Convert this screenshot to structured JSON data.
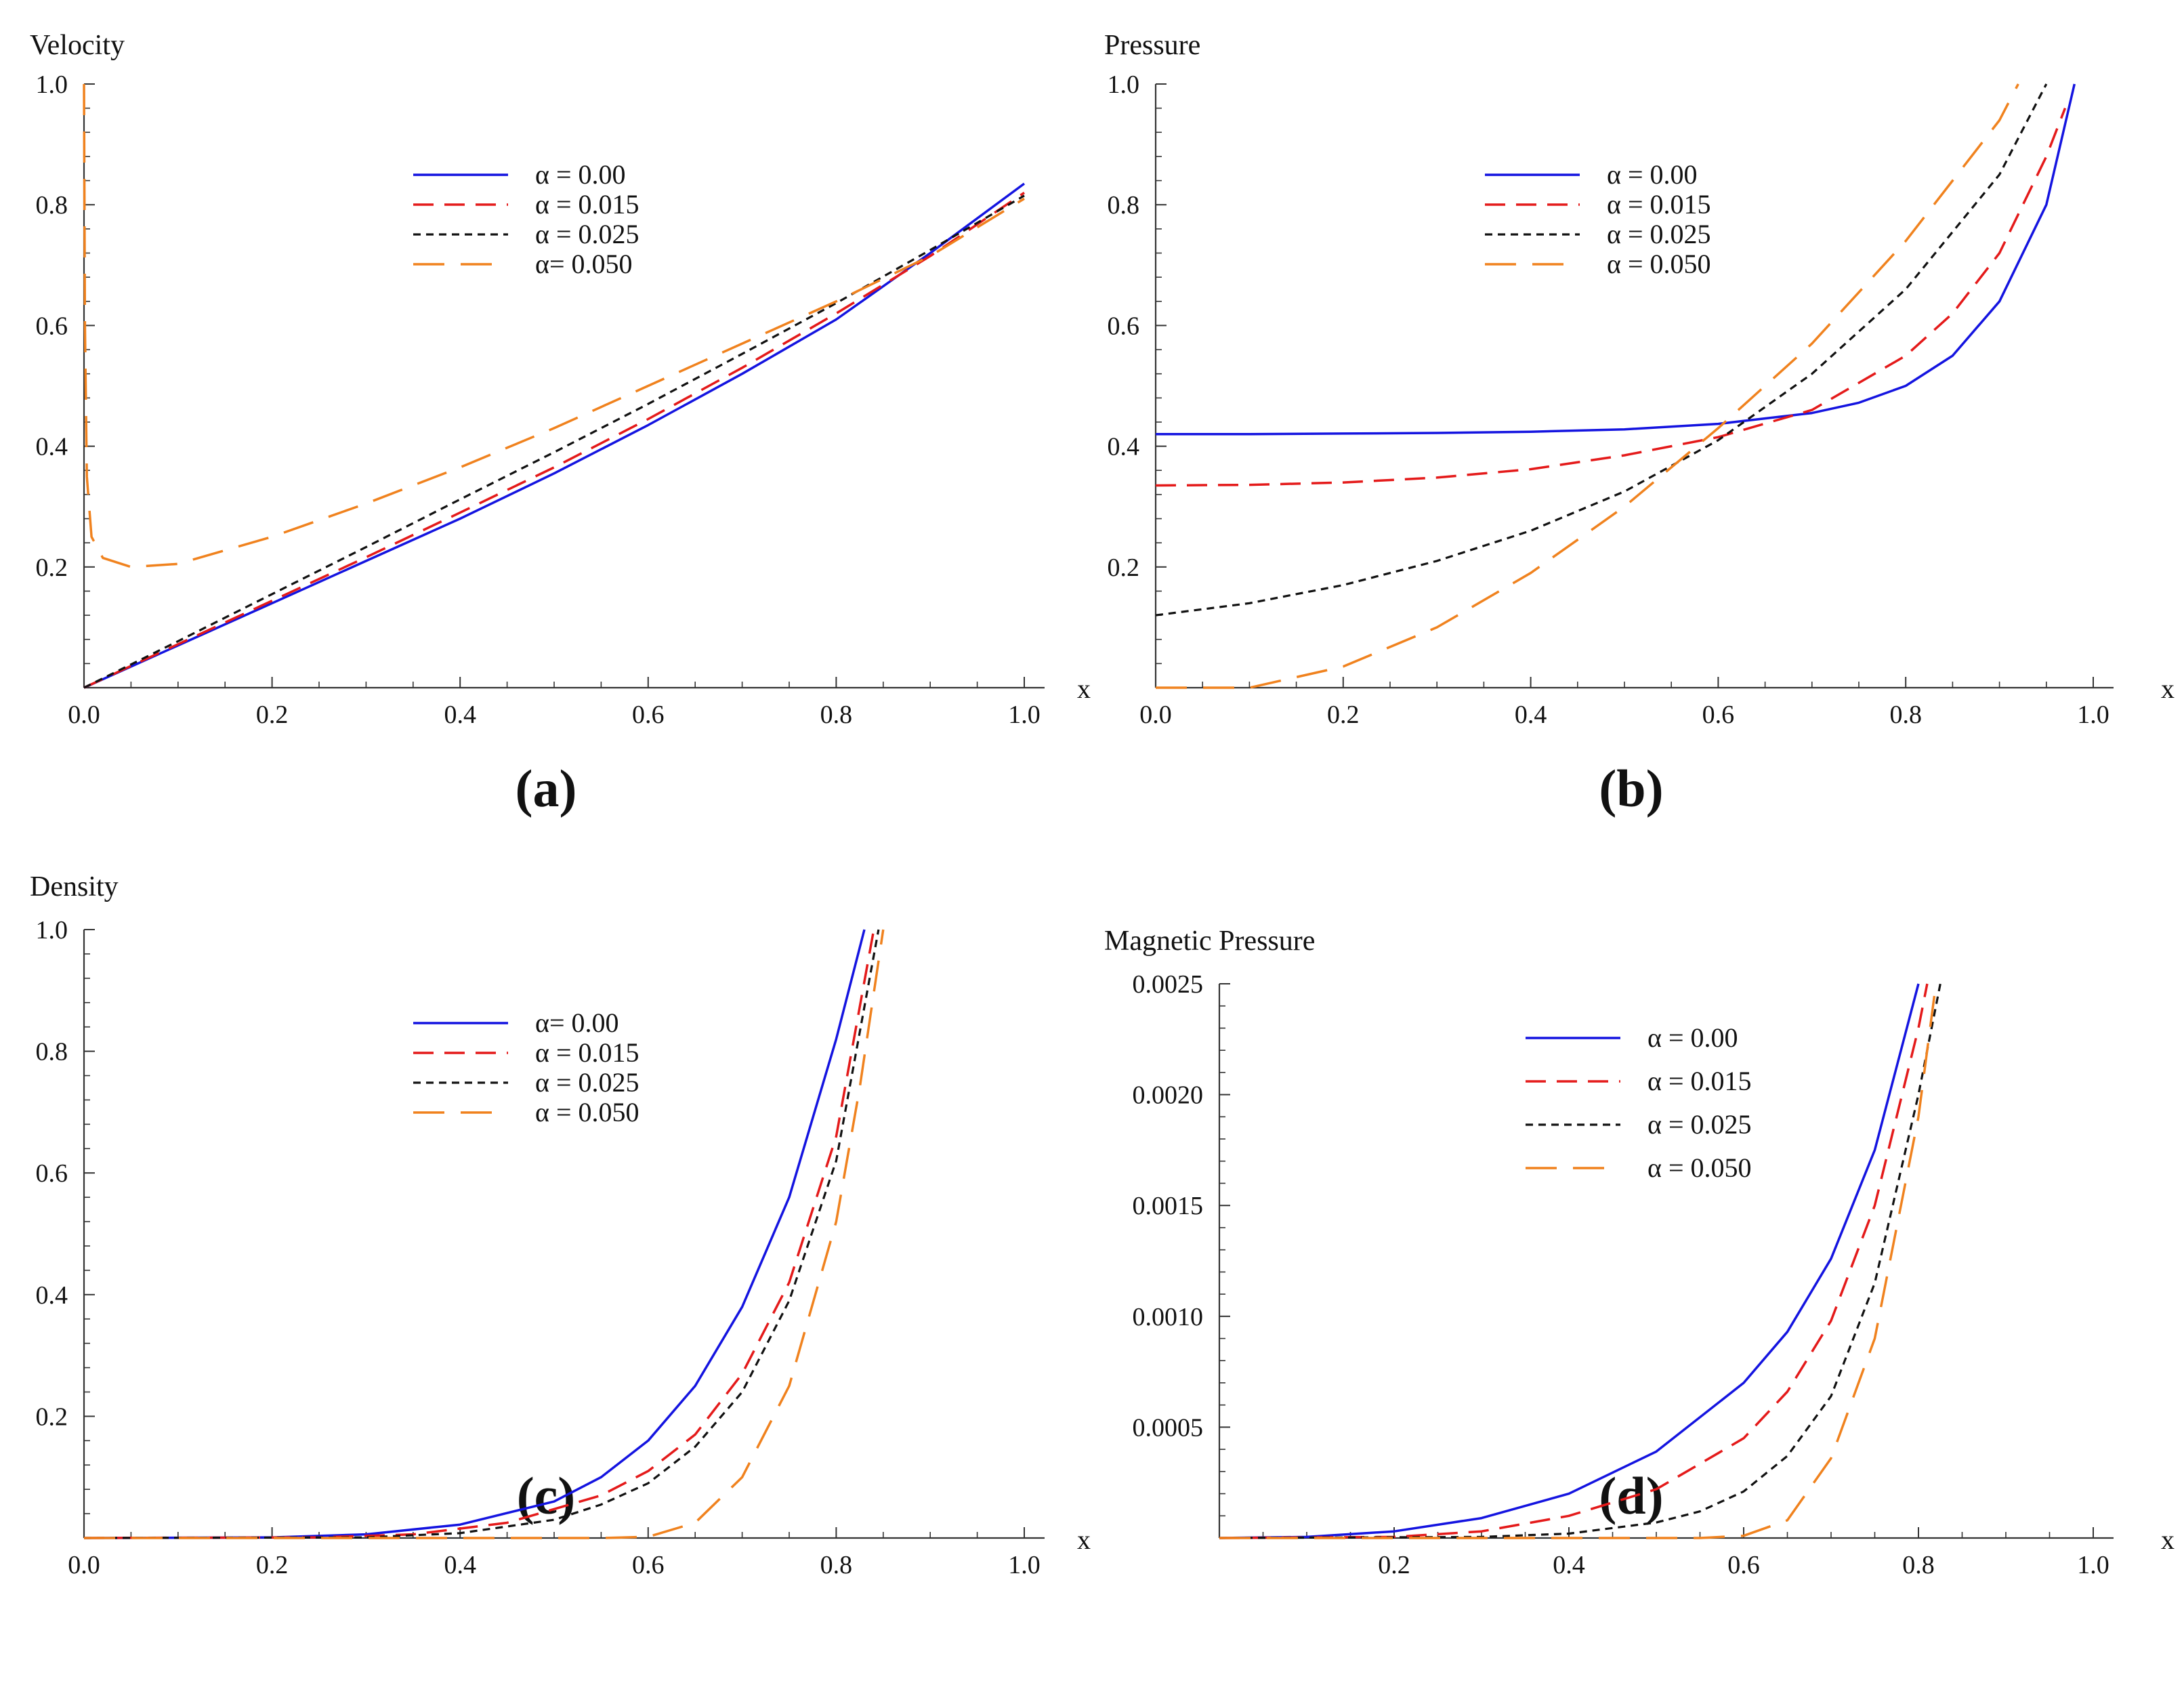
{
  "colors": {
    "blue": "#1414e0",
    "red": "#e41a1a",
    "black": "#111111",
    "orange": "#f0821e",
    "axis": "#333333"
  },
  "chart_data": [
    {
      "panel": "(a)",
      "type": "line",
      "title": "",
      "xlabel": "x",
      "ylabel": "Velocity",
      "xlim": [
        0,
        1
      ],
      "ylim": [
        0,
        1
      ],
      "xticks": [
        "0.0",
        "0.2",
        "0.4",
        "0.6",
        "0.8",
        "1.0"
      ],
      "xtick_values": [
        0,
        0.2,
        0.4,
        0.6,
        0.8,
        1.0
      ],
      "yticks": [
        "0.2",
        "0.4",
        "0.6",
        "0.8",
        "1.0"
      ],
      "ytick_values": [
        0.2,
        0.4,
        0.6,
        0.8,
        1.0
      ],
      "legend": [
        "α = 0.00",
        "α = 0.015",
        "α = 0.025",
        "α= 0.050"
      ],
      "series": [
        {
          "name": "α = 0.00",
          "x": [
            0,
            0.1,
            0.2,
            0.3,
            0.4,
            0.5,
            0.6,
            0.7,
            0.8,
            0.9,
            1.0
          ],
          "y": [
            0,
            0.07,
            0.14,
            0.21,
            0.28,
            0.355,
            0.435,
            0.52,
            0.61,
            0.72,
            0.835
          ]
        },
        {
          "name": "α = 0.015",
          "x": [
            0,
            0.1,
            0.2,
            0.3,
            0.4,
            0.5,
            0.6,
            0.7,
            0.8,
            0.9,
            1.0
          ],
          "y": [
            0,
            0.072,
            0.144,
            0.216,
            0.29,
            0.365,
            0.445,
            0.53,
            0.62,
            0.715,
            0.82
          ]
        },
        {
          "name": "α = 0.025",
          "x": [
            0,
            0.1,
            0.2,
            0.3,
            0.4,
            0.5,
            0.6,
            0.7,
            0.8,
            0.9,
            1.0
          ],
          "y": [
            0,
            0.077,
            0.155,
            0.233,
            0.312,
            0.39,
            0.47,
            0.553,
            0.637,
            0.725,
            0.815
          ]
        },
        {
          "name": "α= 0.050",
          "x": [
            0,
            0.001,
            0.003,
            0.008,
            0.02,
            0.05,
            0.1,
            0.2,
            0.3,
            0.4,
            0.5,
            0.6,
            0.7,
            0.8,
            0.9,
            1.0
          ],
          "y": [
            1.0,
            0.6,
            0.35,
            0.25,
            0.215,
            0.2,
            0.205,
            0.25,
            0.305,
            0.365,
            0.43,
            0.5,
            0.57,
            0.64,
            0.715,
            0.81
          ]
        }
      ]
    },
    {
      "panel": "(b)",
      "type": "line",
      "title": "",
      "xlabel": "x",
      "ylabel": "Pressure",
      "xlim": [
        0,
        1
      ],
      "ylim": [
        0,
        1
      ],
      "xticks": [
        "0.0",
        "0.2",
        "0.4",
        "0.6",
        "0.8",
        "1.0"
      ],
      "xtick_values": [
        0,
        0.2,
        0.4,
        0.6,
        0.8,
        1.0
      ],
      "yticks": [
        "0.2",
        "0.4",
        "0.6",
        "0.8",
        "1.0"
      ],
      "ytick_values": [
        0.2,
        0.4,
        0.6,
        0.8,
        1.0
      ],
      "legend": [
        "α = 0.00",
        "α = 0.015",
        "α = 0.025",
        "α = 0.050"
      ],
      "series": [
        {
          "name": "α = 0.00",
          "x": [
            0,
            0.1,
            0.2,
            0.3,
            0.4,
            0.5,
            0.6,
            0.7,
            0.75,
            0.8,
            0.85,
            0.9,
            0.95,
            0.98
          ],
          "y": [
            0.42,
            0.42,
            0.421,
            0.422,
            0.424,
            0.428,
            0.437,
            0.455,
            0.472,
            0.5,
            0.55,
            0.64,
            0.8,
            1.0
          ]
        },
        {
          "name": "α = 0.015",
          "x": [
            0,
            0.1,
            0.2,
            0.3,
            0.4,
            0.5,
            0.6,
            0.7,
            0.8,
            0.85,
            0.9,
            0.95,
            0.97
          ],
          "y": [
            0.335,
            0.336,
            0.34,
            0.348,
            0.362,
            0.385,
            0.415,
            0.46,
            0.55,
            0.62,
            0.72,
            0.88,
            0.96
          ]
        },
        {
          "name": "α = 0.025",
          "x": [
            0,
            0.1,
            0.2,
            0.3,
            0.4,
            0.5,
            0.6,
            0.7,
            0.8,
            0.9,
            0.95
          ],
          "y": [
            0.12,
            0.14,
            0.17,
            0.21,
            0.26,
            0.325,
            0.41,
            0.52,
            0.66,
            0.85,
            1.0
          ]
        },
        {
          "name": "α = 0.050",
          "x": [
            0,
            0.1,
            0.2,
            0.3,
            0.4,
            0.5,
            0.6,
            0.7,
            0.8,
            0.9,
            0.92
          ],
          "y": [
            0,
            0.0,
            0.035,
            0.1,
            0.19,
            0.3,
            0.43,
            0.57,
            0.74,
            0.94,
            1.0
          ]
        }
      ]
    },
    {
      "panel": "(c)",
      "type": "line",
      "title": "",
      "xlabel": "x",
      "ylabel": "Density",
      "xlim": [
        0,
        1
      ],
      "ylim": [
        0,
        1
      ],
      "xticks": [
        "0.0",
        "0.2",
        "0.4",
        "0.6",
        "0.8",
        "1.0"
      ],
      "xtick_values": [
        0,
        0.2,
        0.4,
        0.6,
        0.8,
        1.0
      ],
      "yticks": [
        "0.2",
        "0.4",
        "0.6",
        "0.8",
        "1.0"
      ],
      "ytick_values": [
        0.2,
        0.4,
        0.6,
        0.8,
        1.0
      ],
      "legend": [
        "α= 0.00",
        "α = 0.015",
        "α = 0.025",
        "α = 0.050"
      ],
      "series": [
        {
          "name": "α= 0.00",
          "x": [
            0,
            0.2,
            0.3,
            0.4,
            0.5,
            0.55,
            0.6,
            0.65,
            0.7,
            0.75,
            0.8,
            0.83
          ],
          "y": [
            0,
            0.001,
            0.006,
            0.022,
            0.06,
            0.1,
            0.16,
            0.25,
            0.38,
            0.56,
            0.82,
            1.0
          ]
        },
        {
          "name": "α = 0.015",
          "x": [
            0,
            0.25,
            0.35,
            0.45,
            0.55,
            0.6,
            0.65,
            0.7,
            0.75,
            0.8,
            0.84
          ],
          "y": [
            0,
            0.001,
            0.006,
            0.025,
            0.07,
            0.11,
            0.17,
            0.27,
            0.42,
            0.66,
            1.0
          ]
        },
        {
          "name": "α = 0.025",
          "x": [
            0,
            0.3,
            0.4,
            0.5,
            0.55,
            0.6,
            0.65,
            0.7,
            0.75,
            0.8,
            0.845
          ],
          "y": [
            0,
            0.001,
            0.008,
            0.03,
            0.055,
            0.09,
            0.15,
            0.24,
            0.39,
            0.62,
            1.0
          ]
        },
        {
          "name": "α = 0.050",
          "x": [
            0,
            0.55,
            0.6,
            0.65,
            0.7,
            0.75,
            0.8,
            0.825,
            0.85
          ],
          "y": [
            0,
            0,
            0.002,
            0.025,
            0.1,
            0.25,
            0.52,
            0.74,
            1.0
          ]
        }
      ]
    },
    {
      "panel": "(d)",
      "type": "line",
      "title": "",
      "xlabel": "x",
      "ylabel": "Magnetic Pressure",
      "xlim": [
        0,
        1
      ],
      "ylim": [
        0,
        0.0025
      ],
      "xticks": [
        "0.2",
        "0.4",
        "0.6",
        "0.8",
        "1.0"
      ],
      "xtick_values": [
        0.2,
        0.4,
        0.6,
        0.8,
        1.0
      ],
      "yticks": [
        "0.0005",
        "0.0010",
        "0.0015",
        "0.0020",
        "0.0025"
      ],
      "ytick_values": [
        0.0005,
        0.001,
        0.0015,
        0.002,
        0.0025
      ],
      "legend": [
        "α = 0.00",
        "α = 0.015",
        "α = 0.025",
        "α = 0.050"
      ],
      "series": [
        {
          "name": "α = 0.00",
          "x": [
            0,
            0.1,
            0.2,
            0.3,
            0.4,
            0.5,
            0.6,
            0.65,
            0.7,
            0.75,
            0.8
          ],
          "y": [
            0,
            5e-06,
            3e-05,
            9e-05,
            0.0002,
            0.00039,
            0.0007,
            0.00093,
            0.00126,
            0.00175,
            0.0025
          ]
        },
        {
          "name": "α = 0.015",
          "x": [
            0,
            0.2,
            0.3,
            0.4,
            0.5,
            0.6,
            0.65,
            0.7,
            0.75,
            0.8,
            0.81
          ],
          "y": [
            0,
            5e-06,
            3e-05,
            0.0001,
            0.00022,
            0.00045,
            0.00066,
            0.00098,
            0.0015,
            0.0023,
            0.0025
          ]
        },
        {
          "name": "α = 0.025",
          "x": [
            0,
            0.3,
            0.4,
            0.5,
            0.55,
            0.6,
            0.65,
            0.7,
            0.75,
            0.8,
            0.825
          ],
          "y": [
            0,
            5e-06,
            2e-05,
            7e-05,
            0.00012,
            0.00021,
            0.00037,
            0.00064,
            0.00115,
            0.002,
            0.0025
          ]
        },
        {
          "name": "α = 0.050",
          "x": [
            0,
            0.55,
            0.6,
            0.65,
            0.7,
            0.75,
            0.8,
            0.82
          ],
          "y": [
            0,
            0,
            1e-05,
            8e-05,
            0.00036,
            0.0009,
            0.0019,
            0.0025
          ]
        }
      ]
    }
  ]
}
